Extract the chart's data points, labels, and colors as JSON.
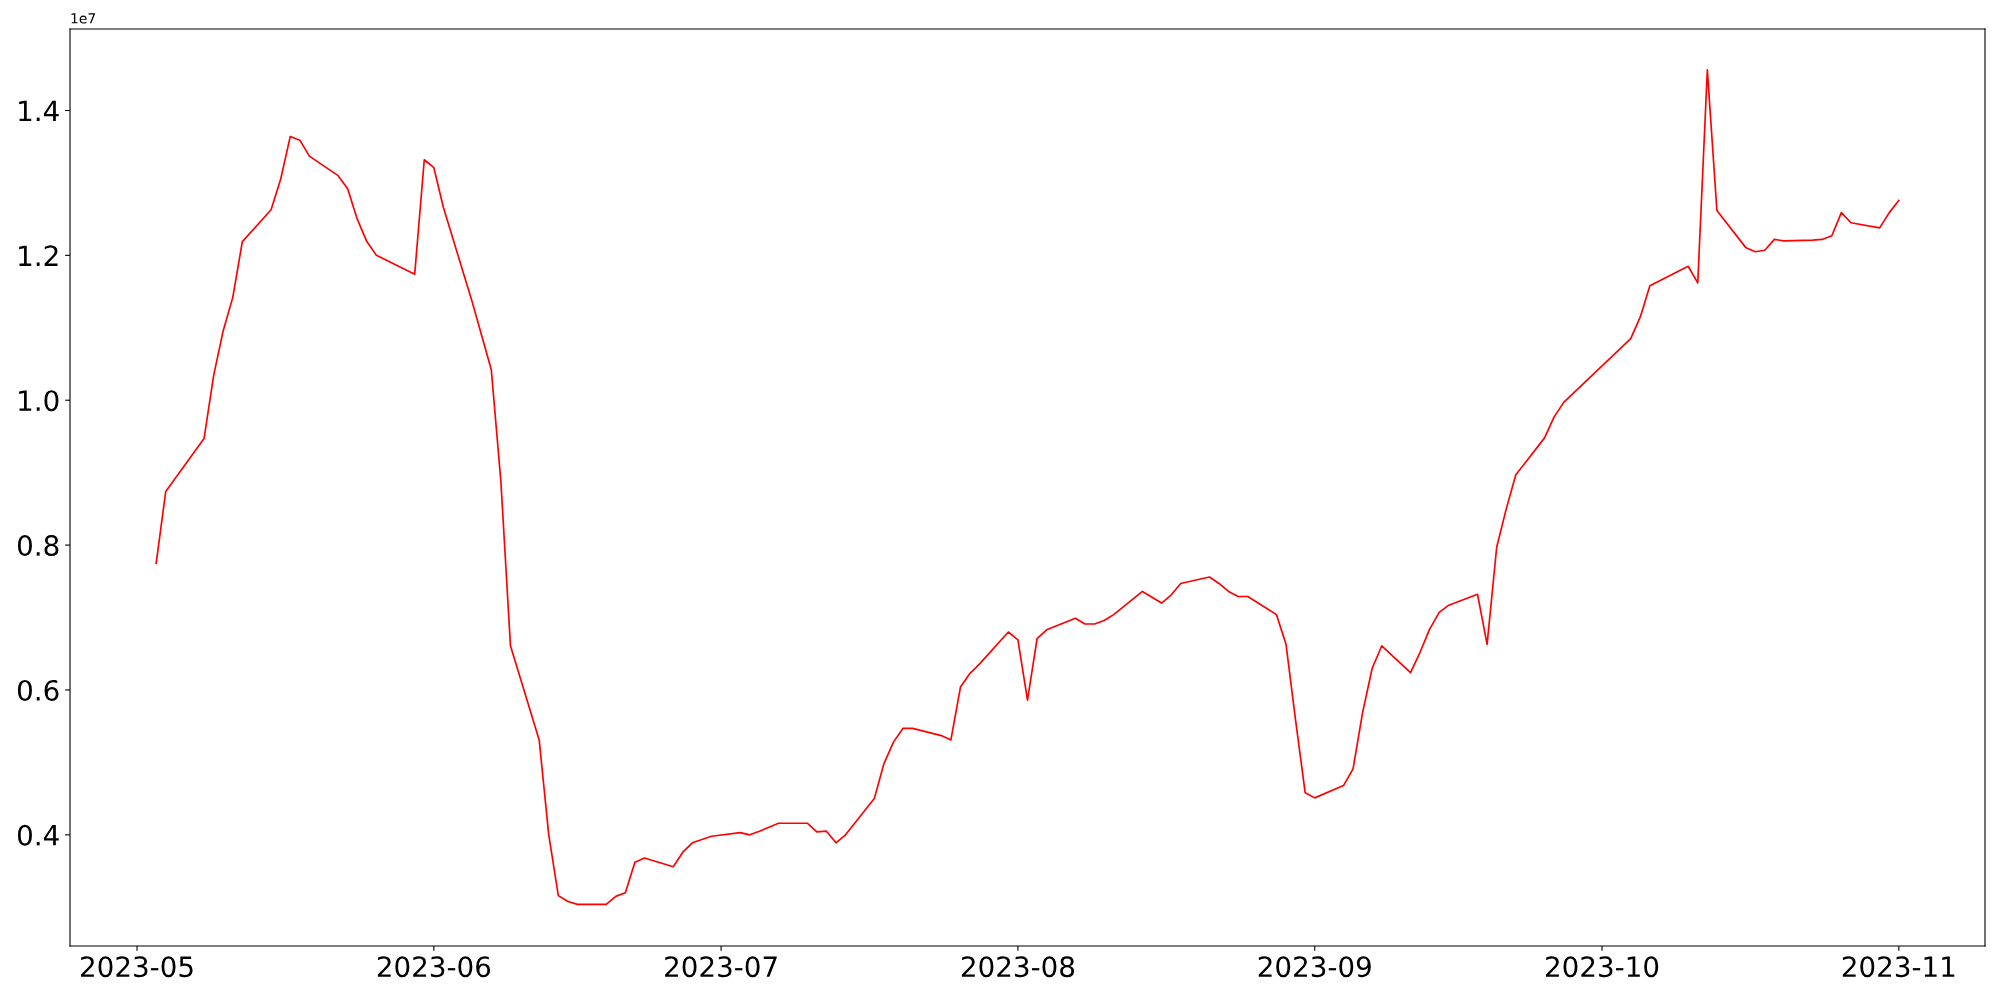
{
  "chart_data": {
    "type": "line",
    "x": [
      "2023-05-03",
      "2023-05-04",
      "2023-05-08",
      "2023-05-09",
      "2023-05-10",
      "2023-05-11",
      "2023-05-12",
      "2023-05-15",
      "2023-05-16",
      "2023-05-17",
      "2023-05-18",
      "2023-05-19",
      "2023-05-22",
      "2023-05-23",
      "2023-05-24",
      "2023-05-25",
      "2023-05-26",
      "2023-05-30",
      "2023-05-31",
      "2023-06-01",
      "2023-06-02",
      "2023-06-05",
      "2023-06-07",
      "2023-06-08",
      "2023-06-09",
      "2023-06-12",
      "2023-06-13",
      "2023-06-14",
      "2023-06-15",
      "2023-06-16",
      "2023-06-19",
      "2023-06-20",
      "2023-06-21",
      "2023-06-22",
      "2023-06-23",
      "2023-06-26",
      "2023-06-27",
      "2023-06-28",
      "2023-06-30",
      "2023-07-03",
      "2023-07-04",
      "2023-07-05",
      "2023-07-07",
      "2023-07-10",
      "2023-07-11",
      "2023-07-12",
      "2023-07-13",
      "2023-07-14",
      "2023-07-17",
      "2023-07-18",
      "2023-07-19",
      "2023-07-20",
      "2023-07-21",
      "2023-07-24",
      "2023-07-25",
      "2023-07-26",
      "2023-07-27",
      "2023-07-28",
      "2023-07-31",
      "2023-08-01",
      "2023-08-02",
      "2023-08-03",
      "2023-08-04",
      "2023-08-07",
      "2023-08-08",
      "2023-08-09",
      "2023-08-10",
      "2023-08-11",
      "2023-08-14",
      "2023-08-16",
      "2023-08-17",
      "2023-08-18",
      "2023-08-21",
      "2023-08-22",
      "2023-08-23",
      "2023-08-24",
      "2023-08-25",
      "2023-08-28",
      "2023-08-29",
      "2023-08-30",
      "2023-08-31",
      "2023-09-01",
      "2023-09-04",
      "2023-09-05",
      "2023-09-06",
      "2023-09-07",
      "2023-09-08",
      "2023-09-11",
      "2023-09-12",
      "2023-09-13",
      "2023-09-14",
      "2023-09-15",
      "2023-09-18",
      "2023-09-19",
      "2023-09-20",
      "2023-09-21",
      "2023-09-22",
      "2023-09-25",
      "2023-09-26",
      "2023-09-27",
      "2023-10-04",
      "2023-10-05",
      "2023-10-06",
      "2023-10-10",
      "2023-10-11",
      "2023-10-12",
      "2023-10-13",
      "2023-10-16",
      "2023-10-17",
      "2023-10-18",
      "2023-10-19",
      "2023-10-20",
      "2023-10-23",
      "2023-10-24",
      "2023-10-25",
      "2023-10-26",
      "2023-10-27",
      "2023-10-30",
      "2023-10-31",
      "2023-11-01"
    ],
    "series": [
      {
        "color": "#ff0000",
        "values": [
          0.775,
          0.874,
          0.947,
          1.034,
          1.096,
          1.142,
          1.219,
          1.263,
          1.305,
          1.364,
          1.359,
          1.337,
          1.31,
          1.292,
          1.25,
          1.219,
          1.2,
          1.174,
          1.332,
          1.321,
          1.266,
          1.136,
          1.042,
          0.888,
          0.661,
          0.531,
          0.4,
          0.316,
          0.308,
          0.304,
          0.304,
          0.315,
          0.32,
          0.362,
          0.368,
          0.356,
          0.376,
          0.389,
          0.398,
          0.403,
          0.4,
          0.405,
          0.416,
          0.416,
          0.404,
          0.405,
          0.389,
          0.4,
          0.45,
          0.498,
          0.528,
          0.547,
          0.547,
          0.537,
          0.531,
          0.604,
          0.623,
          0.636,
          0.68,
          0.669,
          0.586,
          0.671,
          0.683,
          0.699,
          0.691,
          0.691,
          0.696,
          0.704,
          0.736,
          0.72,
          0.731,
          0.747,
          0.756,
          0.747,
          0.736,
          0.729,
          0.729,
          0.704,
          0.663,
          0.558,
          0.458,
          0.451,
          0.468,
          0.491,
          0.569,
          0.63,
          0.661,
          0.624,
          0.652,
          0.684,
          0.707,
          0.717,
          0.732,
          0.663,
          0.797,
          0.85,
          0.897,
          0.948,
          0.977,
          0.997,
          1.085,
          1.115,
          1.158,
          1.185,
          1.162,
          1.456,
          1.262,
          1.211,
          1.205,
          1.207,
          1.222,
          1.22,
          1.221,
          1.222,
          1.227,
          1.259,
          1.245,
          1.238,
          1.259,
          1.276
        ]
      }
    ],
    "xlim": [
      "2023-04-24",
      "2023-11-10"
    ],
    "xticks": [
      {
        "value": "2023-05-01",
        "label": "2023-05"
      },
      {
        "value": "2023-06-01",
        "label": "2023-06"
      },
      {
        "value": "2023-07-01",
        "label": "2023-07"
      },
      {
        "value": "2023-08-01",
        "label": "2023-08"
      },
      {
        "value": "2023-09-01",
        "label": "2023-09"
      },
      {
        "value": "2023-10-01",
        "label": "2023-10"
      },
      {
        "value": "2023-11-01",
        "label": "2023-11"
      }
    ],
    "ylim": [
      0.2465,
      1.5125
    ],
    "yticks": [
      0.4,
      0.6,
      0.8,
      {
        "value": 1,
        "label": "1.0"
      },
      1.2,
      1.4
    ],
    "annotations": [
      "1e7"
    ],
    "grid": false,
    "legend": false,
    "marker": "none",
    "line_style": "solid"
  }
}
